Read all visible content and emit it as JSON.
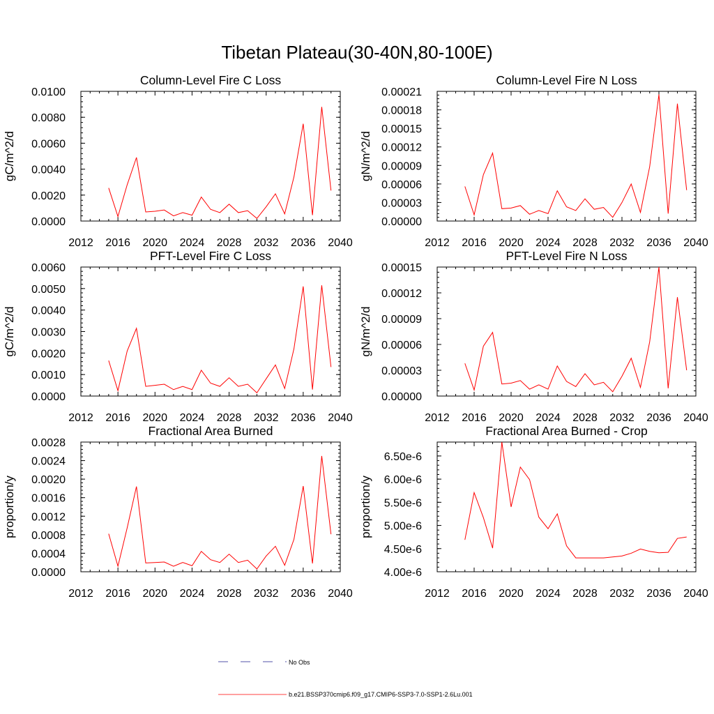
{
  "title": "Tibetan Plateau(30-40N,80-100E)",
  "legend": {
    "obs_label": "No Obs",
    "model_label": "b.e21.BSSP370cmip6.f09_g17.CMIP6-SSP3-7.0-SSP1-2.6Lu.001",
    "obs_color": "#1a1a8c",
    "model_color": "#ff0000"
  },
  "chart_data": [
    {
      "type": "line",
      "title": "Column-Level Fire C Loss",
      "ylabel": "gC/m^2/d",
      "xlim": [
        2012,
        2040
      ],
      "ylim": [
        0,
        0.01
      ],
      "xticks": [
        2012,
        2016,
        2020,
        2024,
        2028,
        2032,
        2036,
        2040
      ],
      "yticks": [
        0,
        0.002,
        0.004,
        0.006,
        0.008,
        0.01
      ],
      "ytick_labels": [
        "0.0000",
        "0.0020",
        "0.0040",
        "0.0060",
        "0.0080",
        "0.0100"
      ],
      "x": [
        2015,
        2016,
        2017,
        2018,
        2019,
        2020,
        2021,
        2022,
        2023,
        2024,
        2025,
        2026,
        2027,
        2028,
        2029,
        2030,
        2031,
        2032,
        2033,
        2034,
        2035,
        2036,
        2037,
        2038,
        2039
      ],
      "series": [
        {
          "values": [
            0.00255,
            0.00035,
            0.0028,
            0.0049,
            0.0007,
            0.00075,
            0.00085,
            0.0004,
            0.00065,
            0.00045,
            0.00185,
            0.0009,
            0.00065,
            0.0013,
            0.00065,
            0.0008,
            0.0002,
            0.0011,
            0.0021,
            0.00055,
            0.0034,
            0.0075,
            0.00045,
            0.0088,
            0.00235
          ]
        }
      ]
    },
    {
      "type": "line",
      "title": "Column-Level Fire N Loss",
      "ylabel": "gN/m^2/d",
      "xlim": [
        2012,
        2040
      ],
      "ylim": [
        0,
        0.00021
      ],
      "xticks": [
        2012,
        2016,
        2020,
        2024,
        2028,
        2032,
        2036,
        2040
      ],
      "yticks": [
        0,
        3e-05,
        6e-05,
        9e-05,
        0.00012,
        0.00015,
        0.00018,
        0.00021
      ],
      "ytick_labels": [
        "0.00000",
        "0.00003",
        "0.00006",
        "0.00009",
        "0.00012",
        "0.00015",
        "0.00018",
        "0.00021"
      ],
      "x": [
        2015,
        2016,
        2017,
        2018,
        2019,
        2020,
        2021,
        2022,
        2023,
        2024,
        2025,
        2026,
        2027,
        2028,
        2029,
        2030,
        2031,
        2032,
        2033,
        2034,
        2035,
        2036,
        2037,
        2038,
        2039
      ],
      "series": [
        {
          "values": [
            5.6e-05,
            1e-05,
            7.5e-05,
            0.00011,
            2e-05,
            2.1e-05,
            2.5e-05,
            1.1e-05,
            1.7e-05,
            1.2e-05,
            4.9e-05,
            2.3e-05,
            1.7e-05,
            3.6e-05,
            1.9e-05,
            2.2e-05,
            6e-06,
            3e-05,
            6e-05,
            1.4e-05,
            8.8e-05,
            0.000205,
            1.2e-05,
            0.00019,
            5e-05
          ]
        }
      ]
    },
    {
      "type": "line",
      "title": "PFT-Level Fire C Loss",
      "ylabel": "gC/m^2/d",
      "xlim": [
        2012,
        2040
      ],
      "ylim": [
        0,
        0.006
      ],
      "xticks": [
        2012,
        2016,
        2020,
        2024,
        2028,
        2032,
        2036,
        2040
      ],
      "yticks": [
        0,
        0.001,
        0.002,
        0.003,
        0.004,
        0.005,
        0.006
      ],
      "ytick_labels": [
        "0.0000",
        "0.0010",
        "0.0020",
        "0.0030",
        "0.0040",
        "0.0050",
        "0.0060"
      ],
      "x": [
        2015,
        2016,
        2017,
        2018,
        2019,
        2020,
        2021,
        2022,
        2023,
        2024,
        2025,
        2026,
        2027,
        2028,
        2029,
        2030,
        2031,
        2032,
        2033,
        2034,
        2035,
        2036,
        2037,
        2038,
        2039
      ],
      "series": [
        {
          "values": [
            0.00165,
            0.00025,
            0.0021,
            0.00315,
            0.00045,
            0.0005,
            0.00055,
            0.0003,
            0.00045,
            0.0003,
            0.0012,
            0.0006,
            0.00045,
            0.00085,
            0.00045,
            0.00055,
            0.00015,
            0.0008,
            0.00145,
            0.00035,
            0.0022,
            0.0051,
            0.0003,
            0.00515,
            0.00135
          ]
        }
      ]
    },
    {
      "type": "line",
      "title": "PFT-Level Fire N Loss",
      "ylabel": "gN/m^2/d",
      "xlim": [
        2012,
        2040
      ],
      "ylim": [
        0,
        0.00015
      ],
      "xticks": [
        2012,
        2016,
        2020,
        2024,
        2028,
        2032,
        2036,
        2040
      ],
      "yticks": [
        0,
        3e-05,
        6e-05,
        9e-05,
        0.00012,
        0.00015
      ],
      "ytick_labels": [
        "0.00000",
        "0.00003",
        "0.00006",
        "0.00009",
        "0.00012",
        "0.00015"
      ],
      "x": [
        2015,
        2016,
        2017,
        2018,
        2019,
        2020,
        2021,
        2022,
        2023,
        2024,
        2025,
        2026,
        2027,
        2028,
        2029,
        2030,
        2031,
        2032,
        2033,
        2034,
        2035,
        2036,
        2037,
        2038,
        2039
      ],
      "series": [
        {
          "values": [
            3.8e-05,
            7e-06,
            5.8e-05,
            7.4e-05,
            1.4e-05,
            1.5e-05,
            1.8e-05,
            8e-06,
            1.3e-05,
            8e-06,
            3.5e-05,
            1.7e-05,
            1.1e-05,
            2.6e-05,
            1.3e-05,
            1.6e-05,
            5e-06,
            2.3e-05,
            4.4e-05,
            1e-05,
            6.3e-05,
            0.00015,
            9e-06,
            0.000115,
            3e-05
          ]
        }
      ]
    },
    {
      "type": "line",
      "title": "Fractional Area Burned",
      "ylabel": "proportion/y",
      "xlim": [
        2012,
        2040
      ],
      "ylim": [
        0,
        0.0028
      ],
      "xticks": [
        2012,
        2016,
        2020,
        2024,
        2028,
        2032,
        2036,
        2040
      ],
      "yticks": [
        0,
        0.0004,
        0.0008,
        0.0012,
        0.0016,
        0.002,
        0.0024,
        0.0028
      ],
      "ytick_labels": [
        "0.0000",
        "0.0004",
        "0.0008",
        "0.0012",
        "0.0016",
        "0.0020",
        "0.0024",
        "0.0028"
      ],
      "x": [
        2015,
        2016,
        2017,
        2018,
        2019,
        2020,
        2021,
        2022,
        2023,
        2024,
        2025,
        2026,
        2027,
        2028,
        2029,
        2030,
        2031,
        2032,
        2033,
        2034,
        2035,
        2036,
        2037,
        2038,
        2039
      ],
      "series": [
        {
          "values": [
            0.00082,
            0.00012,
            0.00095,
            0.00184,
            0.00019,
            0.0002,
            0.00021,
            0.00012,
            0.0002,
            0.00013,
            0.00044,
            0.00026,
            0.0002,
            0.00038,
            0.0002,
            0.00025,
            6e-05,
            0.00034,
            0.00055,
            0.00014,
            0.0007,
            0.00185,
            0.00018,
            0.0025,
            0.00081
          ]
        }
      ]
    },
    {
      "type": "line",
      "title": "Fractional Area Burned - Crop",
      "ylabel": "proportion/y",
      "xlim": [
        2012,
        2040
      ],
      "ylim": [
        4e-06,
        6.8e-06
      ],
      "xticks": [
        2012,
        2016,
        2020,
        2024,
        2028,
        2032,
        2036,
        2040
      ],
      "yticks": [
        4e-06,
        4.5e-06,
        5e-06,
        5.5e-06,
        6e-06,
        6.5e-06
      ],
      "ytick_labels": [
        "4.00e-6",
        "4.50e-6",
        "5.00e-6",
        "5.50e-6",
        "6.00e-6",
        "6.50e-6"
      ],
      "x": [
        2015,
        2016,
        2017,
        2018,
        2019,
        2020,
        2021,
        2022,
        2023,
        2024,
        2025,
        2026,
        2027,
        2028,
        2029,
        2030,
        2031,
        2032,
        2033,
        2034,
        2035,
        2036,
        2037,
        2038,
        2039
      ],
      "series": [
        {
          "values": [
            4.69e-06,
            5.71e-06,
            5.17e-06,
            4.51e-06,
            6.8e-06,
            5.4e-06,
            6.26e-06,
            5.99e-06,
            5.18e-06,
            4.93e-06,
            5.25e-06,
            4.56e-06,
            4.3e-06,
            4.3e-06,
            4.3e-06,
            4.3e-06,
            4.32e-06,
            4.34e-06,
            4.4e-06,
            4.49e-06,
            4.44e-06,
            4.41e-06,
            4.42e-06,
            4.72e-06,
            4.75e-06
          ]
        }
      ]
    }
  ]
}
